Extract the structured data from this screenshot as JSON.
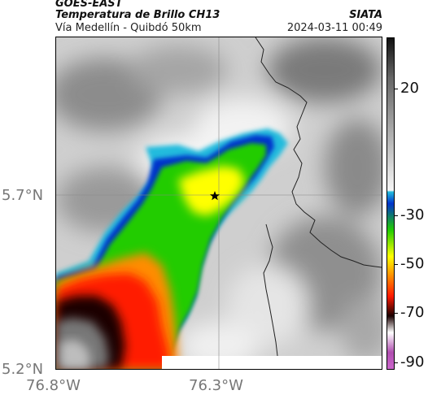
{
  "header": {
    "satellite": "GOES-EAST",
    "product": "Temperatura de Brillo CH13",
    "source": "SIATA",
    "region": "Vía Medellín - Quibdó 50km",
    "datetime": "2024-03-11 00:49"
  },
  "map": {
    "lat_labels": [
      "5.7°N",
      "5.2°N"
    ],
    "lon_labels": [
      "76.8°W",
      "76.3°W"
    ],
    "marker": "star-marker"
  },
  "colorbar": {
    "tick_labels": [
      "20",
      "-30",
      "-50",
      "-70",
      "-90"
    ],
    "unit_hint": "",
    "colors": {
      "cold_purple": "#b04fb0",
      "white": "#ffffff",
      "black": "#1a0000",
      "red": "#ff1a00",
      "orange": "#ff8c00",
      "yellow": "#ffff00",
      "green": "#22cc00",
      "blue": "#0033cc",
      "cyan": "#22bbdd",
      "gray_light": "#dddddd",
      "gray_dark": "#111111"
    }
  }
}
